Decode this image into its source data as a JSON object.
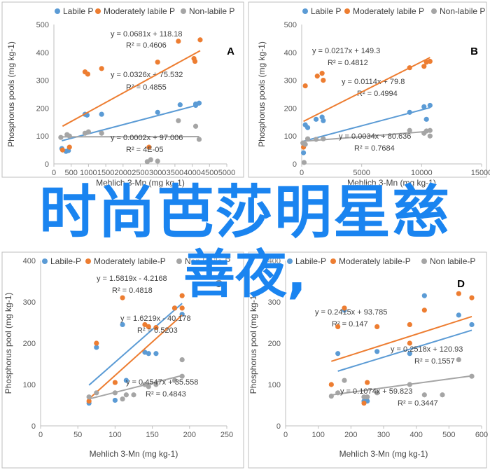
{
  "overlay": {
    "line1": "时尚芭莎明星慈",
    "line2": "善夜,"
  },
  "chart_data": [
    {
      "type": "scatter",
      "panel_label": "A",
      "xlabel": "Mehlich 3-Mn (mg kg-1)",
      "ylabel": "Phosphorus pools (mg kg-1)",
      "xlim": [
        0,
        5000
      ],
      "ylim": [
        0,
        500
      ],
      "xticks": [
        0,
        500,
        1000,
        1500,
        2000,
        2500,
        3000,
        3500,
        4000,
        4500,
        5000
      ],
      "yticks": [
        0,
        100,
        200,
        300,
        400,
        500
      ],
      "legend": [
        "Labile P",
        "Moderately labile P",
        "Non-labile P"
      ],
      "legend_placement": "top",
      "grid": false,
      "series": [
        {
          "name": "Labile P",
          "color": "#5b9bd5",
          "points": [
            [
              230,
              55
            ],
            [
              350,
              45
            ],
            [
              420,
              48
            ],
            [
              900,
              178
            ],
            [
              960,
              175
            ],
            [
              1380,
              178
            ],
            [
              3000,
              185
            ],
            [
              3650,
              212
            ],
            [
              4100,
              215
            ],
            [
              4200,
              218
            ],
            [
              4100,
              210
            ]
          ],
          "trend": {
            "slope": 0.0326,
            "intercept": 75.532
          },
          "equation": "y = 0.0326x + 75.532",
          "r2": "R² = 0.4855"
        },
        {
          "name": "Moderately labile P",
          "color": "#ed7d31",
          "points": [
            [
              250,
              50
            ],
            [
              450,
              60
            ],
            [
              900,
              330
            ],
            [
              980,
              322
            ],
            [
              1380,
              342
            ],
            [
              2750,
              60
            ],
            [
              3000,
              365
            ],
            [
              3600,
              440
            ],
            [
              4050,
              378
            ],
            [
              4080,
              368
            ],
            [
              4230,
              445
            ]
          ],
          "trend": {
            "slope": 0.0681,
            "intercept": 118.18
          },
          "equation": "y = 0.0681x + 118.18",
          "r2": "R² = 0.4606"
        },
        {
          "name": "Non-labile P",
          "color": "#a5a5a5",
          "points": [
            [
              200,
              95
            ],
            [
              380,
              105
            ],
            [
              450,
              100
            ],
            [
              900,
              110
            ],
            [
              1000,
              115
            ],
            [
              1380,
              110
            ],
            [
              2700,
              8
            ],
            [
              2800,
              15
            ],
            [
              3000,
              10
            ],
            [
              3600,
              155
            ],
            [
              4100,
              135
            ],
            [
              4200,
              88
            ]
          ],
          "trend": {
            "slope": 0.0002,
            "intercept": 97.006
          },
          "equation": "y = 0.0002x + 97.006",
          "r2": "R² = 4E-05"
        }
      ]
    },
    {
      "type": "scatter",
      "panel_label": "B",
      "xlabel": "Mehlich 3-Mn (mg kg-1)",
      "ylabel": "Phosphorus pools (mg kg-1)",
      "xlim": [
        0,
        15000
      ],
      "ylim": [
        0,
        500
      ],
      "xticks": [
        0,
        5000,
        10000,
        15000
      ],
      "yticks": [
        0,
        100,
        200,
        300,
        400,
        500
      ],
      "legend": [
        "Labile P",
        "Moderately labile P",
        "Non-labile P"
      ],
      "legend_placement": "top",
      "grid": false,
      "series": [
        {
          "name": "Labile P",
          "color": "#5b9bd5",
          "points": [
            [
              150,
              40
            ],
            [
              300,
              140
            ],
            [
              500,
              130
            ],
            [
              1200,
              160
            ],
            [
              1700,
              168
            ],
            [
              1800,
              155
            ],
            [
              9000,
              185
            ],
            [
              10200,
              205
            ],
            [
              10400,
              160
            ],
            [
              10700,
              210
            ]
          ],
          "trend": {
            "slope": 0.0114,
            "intercept": 79.8
          },
          "equation": "y = 0.0114x + 79.8",
          "r2": "R² = 0.4994"
        },
        {
          "name": "Moderately labile P",
          "color": "#ed7d31",
          "points": [
            [
              150,
              60
            ],
            [
              300,
              280
            ],
            [
              1300,
              315
            ],
            [
              1700,
              325
            ],
            [
              1800,
              300
            ],
            [
              9000,
              345
            ],
            [
              10200,
              350
            ],
            [
              10400,
              365
            ],
            [
              10700,
              368
            ]
          ],
          "trend": {
            "slope": 0.0217,
            "intercept": 149.3
          },
          "equation": "y = 0.0217x + 149.3",
          "r2": "R² = 0.4812"
        },
        {
          "name": "Non-labile P",
          "color": "#a5a5a5",
          "points": [
            [
              100,
              75
            ],
            [
              200,
              5
            ],
            [
              300,
              70
            ],
            [
              500,
              90
            ],
            [
              1200,
              88
            ],
            [
              1800,
              90
            ],
            [
              9000,
              120
            ],
            [
              10200,
              110
            ],
            [
              10400,
              118
            ],
            [
              10700,
              120
            ],
            [
              10700,
              100
            ]
          ],
          "trend": {
            "slope": 0.0034,
            "intercept": 80.636
          },
          "equation": "y = 0.0034x + 80.636",
          "r2": "R² = 0.7684"
        }
      ]
    },
    {
      "type": "scatter",
      "panel_label": "C",
      "xlabel": "Mehlich 3-Mn (mg kg-1)",
      "ylabel": "Phosphorus pool (mg kg-1)",
      "xlim": [
        0,
        250
      ],
      "ylim": [
        0,
        400
      ],
      "xticks": [
        0,
        50,
        100,
        150,
        200,
        250
      ],
      "yticks": [
        0,
        100,
        200,
        300,
        400
      ],
      "legend": [
        "Labile-P",
        "Moderately labile-P",
        "Non labile-P"
      ],
      "legend_placement": "top",
      "grid": false,
      "series": [
        {
          "name": "Labile-P",
          "color": "#5b9bd5",
          "points": [
            [
              65,
              55
            ],
            [
              75,
              190
            ],
            [
              100,
              62
            ],
            [
              110,
              245
            ],
            [
              115,
              110
            ],
            [
              140,
              178
            ],
            [
              145,
              175
            ],
            [
              155,
              175
            ],
            [
              180,
              285
            ],
            [
              190,
              270
            ]
          ],
          "trend": {
            "slope": 1.5819,
            "intercept": -4.2168
          },
          "equation": "y = 1.5819x - 4.2168",
          "r2": "R² = 0.4818"
        },
        {
          "name": "Moderately labile-P",
          "color": "#ed7d31",
          "points": [
            [
              65,
              60
            ],
            [
              75,
              200
            ],
            [
              100,
              105
            ],
            [
              110,
              310
            ],
            [
              140,
              245
            ],
            [
              145,
              240
            ],
            [
              155,
              238
            ],
            [
              180,
              285
            ],
            [
              190,
              285
            ],
            [
              190,
              315
            ]
          ],
          "trend": {
            "slope": 1.6219,
            "intercept": -40.178
          },
          "equation": "y = 1.6219x - 40.178",
          "r2": "R² = 0.5203"
        },
        {
          "name": "Non labile-P",
          "color": "#a5a5a5",
          "points": [
            [
              65,
              70
            ],
            [
              75,
              80
            ],
            [
              100,
              80
            ],
            [
              110,
              65
            ],
            [
              115,
              75
            ],
            [
              125,
              75
            ],
            [
              140,
              100
            ],
            [
              145,
              95
            ],
            [
              155,
              100
            ],
            [
              180,
              110
            ],
            [
              190,
              160
            ],
            [
              190,
              120
            ]
          ],
          "trend": {
            "slope": 0.4547,
            "intercept": 35.558
          },
          "equation": "y = 0.4547x + 35.558",
          "r2": "R² = 0.4843"
        }
      ]
    },
    {
      "type": "scatter",
      "panel_label": "D",
      "xlabel": "Mehlich 3-Mn (mg kg-1)",
      "ylabel": "Phosphorus pool (mg kg-1)",
      "xlim": [
        0,
        600
      ],
      "ylim": [
        0,
        400
      ],
      "xticks": [
        0,
        100,
        200,
        300,
        400,
        500,
        600
      ],
      "yticks": [
        0,
        100,
        200,
        300,
        400
      ],
      "legend": [
        "Labile-P",
        "Moderately labile-P",
        "Non labile-P"
      ],
      "legend_placement": "top",
      "grid": false,
      "series": [
        {
          "name": "Labile-P",
          "color": "#5b9bd5",
          "points": [
            [
              160,
              175
            ],
            [
              180,
              280
            ],
            [
              240,
              60
            ],
            [
              250,
              60
            ],
            [
              280,
              180
            ],
            [
              380,
              175
            ],
            [
              425,
              315
            ],
            [
              530,
              268
            ],
            [
              570,
              245
            ]
          ],
          "trend": {
            "slope": 0.2415,
            "intercept": 93.785
          },
          "equation": "y = 0.2415x + 93.785",
          "r2": "R² = 0.147"
        },
        {
          "name": "Moderately labile-P",
          "color": "#ed7d31",
          "points": [
            [
              140,
              100
            ],
            [
              160,
              240
            ],
            [
              180,
              285
            ],
            [
              240,
              55
            ],
            [
              250,
              105
            ],
            [
              280,
              240
            ],
            [
              380,
              245
            ],
            [
              380,
              200
            ],
            [
              425,
              280
            ],
            [
              530,
              320
            ],
            [
              570,
              310
            ]
          ],
          "trend": {
            "slope": 0.2518,
            "intercept": 120.93
          },
          "equation": "y = 0.2518x + 120.93",
          "r2": "R² = 0.1557"
        },
        {
          "name": "Non labile-P",
          "color": "#a5a5a5",
          "points": [
            [
              140,
              72
            ],
            [
              160,
              80
            ],
            [
              180,
              110
            ],
            [
              240,
              70
            ],
            [
              250,
              70
            ],
            [
              280,
              80
            ],
            [
              380,
              100
            ],
            [
              425,
              75
            ],
            [
              480,
              75
            ],
            [
              530,
              160
            ],
            [
              570,
              120
            ]
          ],
          "trend": {
            "slope": 0.1074,
            "intercept": 59.823
          },
          "equation": "y = 0.1074x + 59.823",
          "r2": "R² = 0.3447"
        }
      ]
    }
  ]
}
